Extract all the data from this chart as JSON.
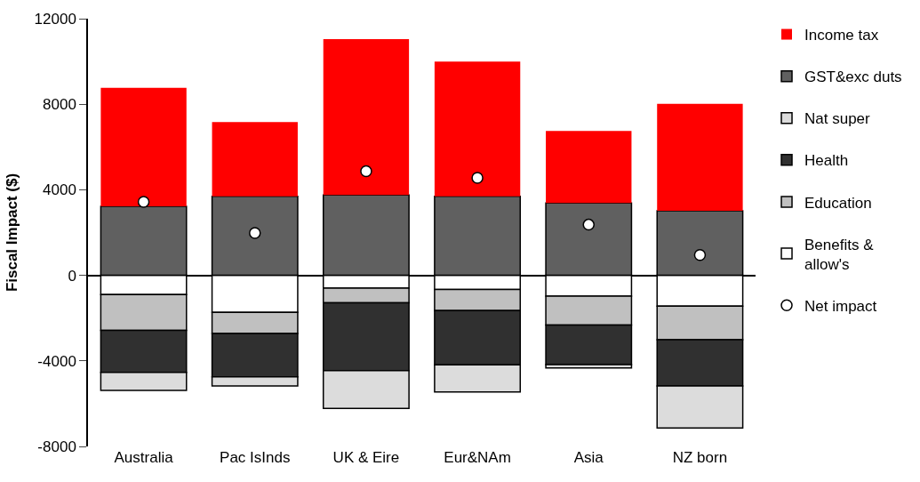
{
  "chart_data": {
    "type": "bar",
    "stacked": true,
    "ylabel": "Fiscal Impact ($)",
    "categories": [
      "Australia",
      "Pac IsInds",
      "UK & Eire",
      "Eur&NAm",
      "Asia",
      "NZ born"
    ],
    "series": [
      {
        "name": "Benefits & allow's",
        "color": "#ffffff",
        "values": [
          -905,
          -1730,
          -600,
          -665,
          -975,
          -1440
        ]
      },
      {
        "name": "Education",
        "color": "#c0c0c0",
        "values": [
          -1670,
          -985,
          -685,
          -985,
          -1350,
          -1570
        ]
      },
      {
        "name": "Health",
        "color": "#303030",
        "values": [
          -1965,
          -2035,
          -3170,
          -2540,
          -1850,
          -2160
        ]
      },
      {
        "name": "Nat super",
        "color": "#dcdcdc",
        "values": [
          -840,
          -420,
          -1765,
          -1260,
          -155,
          -1965
        ]
      },
      {
        "name": "GST&exc duts",
        "color": "#606060",
        "values": [
          3225,
          3690,
          3760,
          3690,
          3380,
          3015
        ]
      },
      {
        "name": "Income tax",
        "color": "#ff0000",
        "values": [
          5545,
          3480,
          7280,
          6300,
          3370,
          5000
        ]
      },
      {
        "name": "Net impact",
        "type": "scatter",
        "color": "#ffffff",
        "marker": "circle",
        "values": [
          3435,
          1980,
          4870,
          4560,
          2370,
          950
        ]
      }
    ],
    "ylim": [
      -8000,
      12000
    ],
    "yticks": [
      -8000,
      -4000,
      0,
      4000,
      8000,
      12000
    ],
    "legend": "right"
  }
}
